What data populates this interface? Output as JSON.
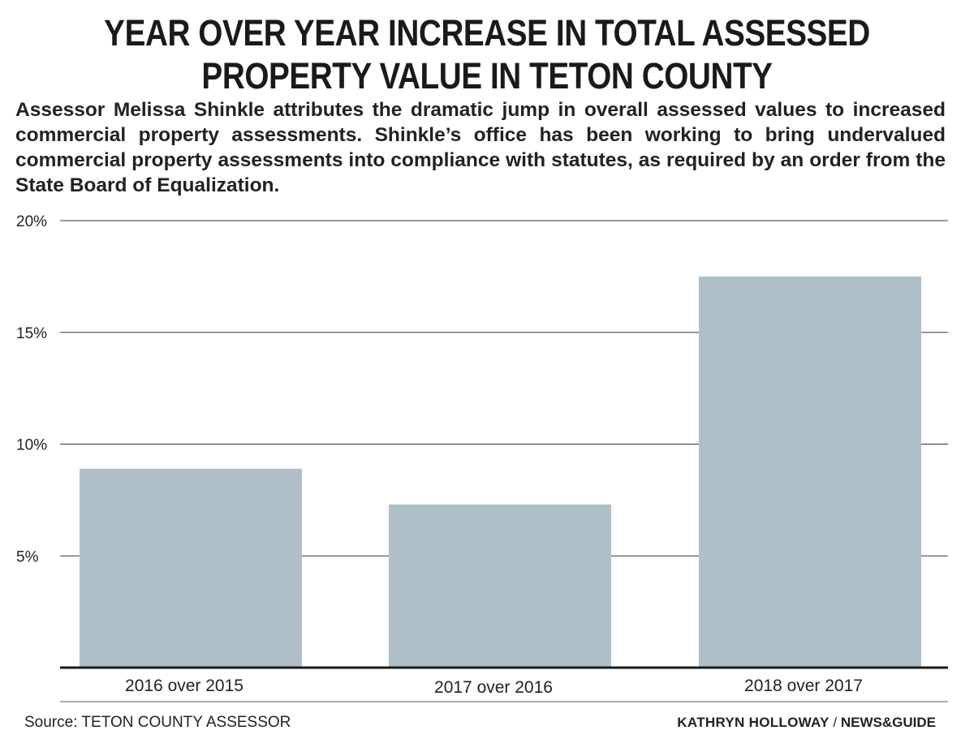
{
  "header": {
    "title_line1": "YEAR OVER YEAR INCREASE IN TOTAL ASSESSED",
    "title_line2": "PROPERTY VALUE IN TETON COUNTY",
    "subtitle": "Assessor Melissa Shinkle attributes the dramatic jump in overall assessed values to increased commercial property assessments. Shinkle’s office has been working to bring undervalued commercial property assessments into compliance with statutes, as required by an order from the State Board of Equalization."
  },
  "chart_data": {
    "type": "bar",
    "categories": [
      "2016 over 2015",
      "2017 over 2016",
      "2018 over 2017"
    ],
    "values": [
      8.9,
      7.3,
      17.5
    ],
    "unit": "%",
    "ylim": [
      0,
      20
    ],
    "yticks": [
      5,
      10,
      15,
      20
    ],
    "ytick_labels": [
      "5%",
      "10%",
      "15%",
      "20%"
    ],
    "grid": true,
    "bar_color": "#afbfc7",
    "title": "YEAR OVER YEAR INCREASE IN TOTAL ASSESSED PROPERTY VALUE IN TETON COUNTY",
    "xlabel": "",
    "ylabel": ""
  },
  "footer": {
    "source": "Source: TETON COUNTY ASSESSOR",
    "author": "KATHRYN HOLLOWAY",
    "separator": " / ",
    "org": "NEWS&GUIDE"
  }
}
